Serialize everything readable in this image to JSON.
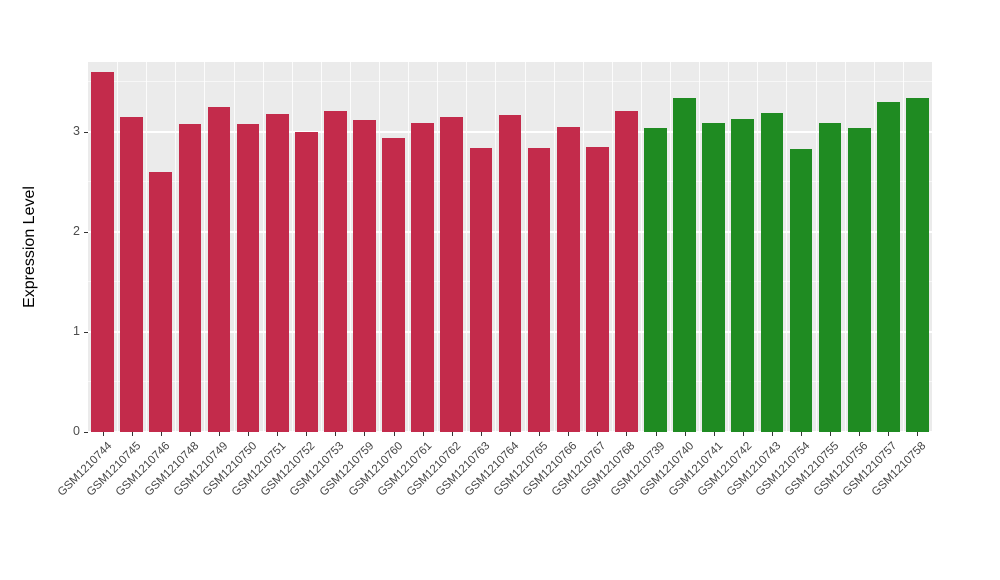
{
  "chart_data": {
    "type": "bar",
    "ylabel": "Expression Level",
    "xlabel": "",
    "ylim": [
      0,
      3.7
    ],
    "yticks": [
      0,
      1,
      2,
      3
    ],
    "yticks_minor": [
      0.5,
      1.5,
      2.5,
      3.5
    ],
    "grid": true,
    "legend": "none",
    "panel_bg": "#EBEBEB",
    "gridline_color": "#FFFFFF",
    "axis_text_color": "#454545",
    "categories": [
      "GSM1210744",
      "GSM1210745",
      "GSM1210746",
      "GSM1210748",
      "GSM1210749",
      "GSM1210750",
      "GSM1210751",
      "GSM1210752",
      "GSM1210753",
      "GSM1210759",
      "GSM1210760",
      "GSM1210761",
      "GSM1210762",
      "GSM1210763",
      "GSM1210764",
      "GSM1210765",
      "GSM1210766",
      "GSM1210767",
      "GSM1210768",
      "GSM1210739",
      "GSM1210740",
      "GSM1210741",
      "GSM1210742",
      "GSM1210743",
      "GSM1210754",
      "GSM1210755",
      "GSM1210756",
      "GSM1210757",
      "GSM1210758"
    ],
    "values": [
      3.6,
      3.15,
      2.6,
      3.08,
      3.25,
      3.08,
      3.18,
      3.0,
      3.21,
      3.12,
      2.94,
      3.09,
      3.15,
      2.84,
      3.17,
      2.84,
      3.05,
      2.85,
      3.21,
      3.04,
      3.34,
      3.09,
      3.13,
      3.19,
      2.83,
      3.09,
      3.04,
      3.3,
      3.34
    ],
    "groups": [
      "red",
      "red",
      "red",
      "red",
      "red",
      "red",
      "red",
      "red",
      "red",
      "red",
      "red",
      "red",
      "red",
      "red",
      "red",
      "red",
      "red",
      "red",
      "red",
      "green",
      "green",
      "green",
      "green",
      "green",
      "green",
      "green",
      "green",
      "green",
      "green"
    ],
    "group_colors": {
      "red": "#C32B4B",
      "green": "#1F8B22"
    }
  }
}
